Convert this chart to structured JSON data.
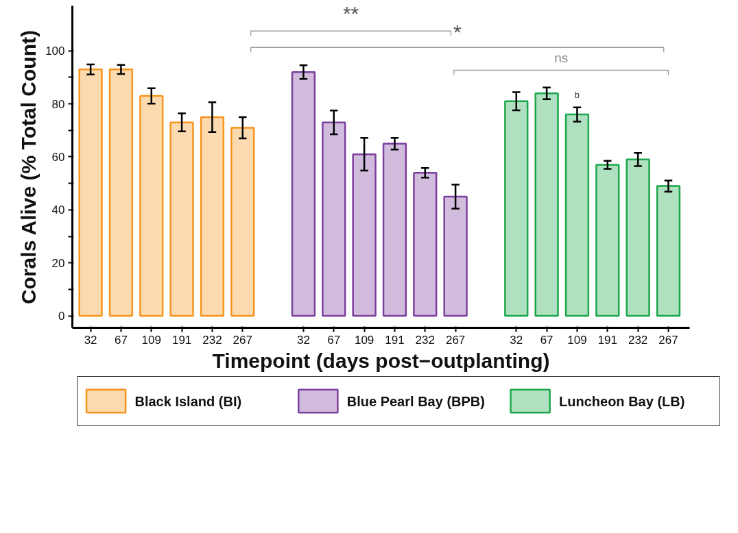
{
  "chart_data": {
    "type": "bar",
    "xlabel": "Timepoint (days post−outplanting)",
    "ylabel": "Corals Alive (% Total Count)",
    "categories": [
      "32",
      "67",
      "109",
      "191",
      "232",
      "267",
      null,
      "32",
      "67",
      "109",
      "191",
      "232",
      "267",
      null,
      "32",
      "67",
      "109",
      "191",
      "232",
      "267"
    ],
    "series": [
      {
        "name": "Black Island (BI)",
        "color": "#f7941d",
        "values": [
          93,
          93,
          83,
          73,
          75,
          71,
          null,
          null,
          null,
          null,
          null,
          null,
          null,
          null,
          null,
          null,
          null,
          null,
          null,
          null
        ],
        "errors": [
          1.9,
          1.7,
          2.9,
          3.4,
          5.6,
          4.0,
          null,
          null,
          null,
          null,
          null,
          null,
          null,
          null,
          null,
          null,
          null,
          null,
          null,
          null
        ]
      },
      {
        "name": "Blue Pearl Bay (BPB)",
        "color": "#7b3f9e",
        "values": [
          null,
          null,
          null,
          null,
          null,
          null,
          null,
          92,
          73,
          61,
          65,
          54,
          45,
          null,
          null,
          null,
          null,
          null,
          null,
          null
        ],
        "errors": [
          null,
          null,
          null,
          null,
          null,
          null,
          null,
          2.6,
          4.5,
          6.2,
          2.2,
          1.8,
          4.5,
          null,
          null,
          null,
          null,
          null,
          null,
          null
        ]
      },
      {
        "name": "Luncheon Bay (LB)",
        "color": "#1aa64a",
        "values": [
          null,
          null,
          null,
          null,
          null,
          null,
          null,
          null,
          null,
          null,
          null,
          null,
          null,
          null,
          81,
          84,
          76,
          57,
          59,
          49
        ],
        "errors": [
          null,
          null,
          null,
          null,
          null,
          null,
          null,
          null,
          null,
          null,
          null,
          null,
          null,
          null,
          3.4,
          2.2,
          2.7,
          1.5,
          2.5,
          2.1
        ]
      }
    ],
    "ylim": [
      -4.5,
      117
    ],
    "yticks": [
      0,
      {
        "value": 10,
        "label": null
      },
      20,
      {
        "value": 30,
        "label": null
      },
      40,
      {
        "value": 50,
        "label": null
      },
      60,
      {
        "value": 70,
        "label": null
      },
      80,
      {
        "value": 90,
        "label": null
      },
      100
    ],
    "annotations": [
      "**",
      "*",
      "ns",
      "b"
    ],
    "legend": "bottom",
    "grid": false
  }
}
